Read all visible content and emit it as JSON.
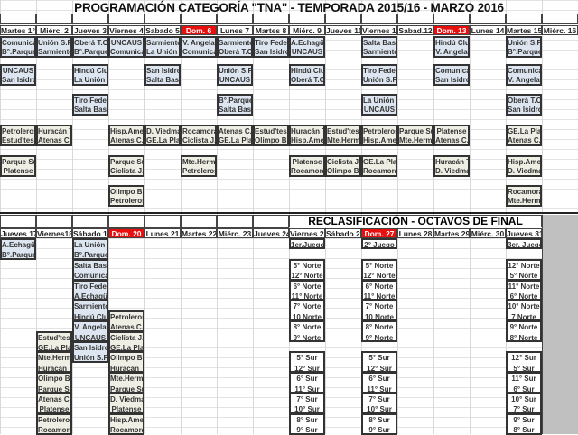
{
  "title": "PROGRAMACIÓN CATEGORÍA \"TNA\" - TEMPORADA 2015/16 - MARZO 2016",
  "colors": {
    "header_red": "#e8100f",
    "zone_a": "#dde6f0",
    "zone_b": "#eeeee4",
    "filler": "#c0c0c0"
  },
  "top": {
    "days": [
      {
        "label": "Martes 1°",
        "red": false,
        "games": [
          {
            "slot": 0,
            "kind": "blue",
            "teams": [
              "Comunicac",
              "B°.Parque"
            ]
          },
          {
            "slot": 1,
            "kind": "blue",
            "teams": [
              "UNCAUS",
              "San Isidro"
            ]
          },
          {
            "slot": 3,
            "kind": "beige",
            "teams": [
              "Petroleros",
              "Estud'tesO"
            ]
          },
          {
            "slot": 4,
            "kind": "beige",
            "teams": [
              "Parque Sur",
              "Platense"
            ]
          }
        ]
      },
      {
        "label": "Miérc. 2",
        "red": false,
        "games": [
          {
            "slot": 0,
            "kind": "blue",
            "teams": [
              "Unión S.Fe",
              "Sarmiento"
            ]
          },
          {
            "slot": 3,
            "kind": "beige",
            "teams": [
              "Huracán T.",
              "Atenas C.P"
            ]
          }
        ]
      },
      {
        "label": "Jueves 3",
        "red": false,
        "games": [
          {
            "slot": 0,
            "kind": "blue",
            "teams": [
              "Oberá T.C.",
              "B°.Parque"
            ]
          },
          {
            "slot": 1,
            "kind": "blue",
            "teams": [
              "Hindú Club",
              "La Unión C."
            ]
          },
          {
            "slot": 2,
            "kind": "blue",
            "teams": [
              "Tiro Feder.",
              "Salta Bask."
            ]
          }
        ]
      },
      {
        "label": "Viernes 4",
        "red": false,
        "games": [
          {
            "slot": 0,
            "kind": "blue",
            "teams": [
              "UNCAUS",
              "Comunicac"
            ]
          },
          {
            "slot": 3,
            "kind": "beige",
            "teams": [
              "Hisp.Amer.",
              "Atenas C.P"
            ]
          },
          {
            "slot": 4,
            "kind": "beige",
            "teams": [
              "Parque Sur",
              "Ciclista J."
            ]
          },
          {
            "slot": 5,
            "kind": "beige",
            "teams": [
              "Olimpo BB.",
              "Petroleros"
            ]
          }
        ]
      },
      {
        "label": "Sabado 5",
        "red": false,
        "games": [
          {
            "slot": 0,
            "kind": "blue",
            "teams": [
              "Sarmiento",
              "La Unión C."
            ]
          },
          {
            "slot": 1,
            "kind": "blue",
            "teams": [
              "San Isidro",
              "Salta Bask."
            ]
          },
          {
            "slot": 3,
            "kind": "beige",
            "teams": [
              "D. Viedma",
              "GE.La Plata"
            ]
          }
        ]
      },
      {
        "label": "Dom. 6",
        "red": true,
        "games": [
          {
            "slot": 0,
            "kind": "blue",
            "teams": [
              "V. Angela",
              "Comunicac"
            ]
          },
          {
            "slot": 3,
            "kind": "beige",
            "teams": [
              "Rocamora",
              "Ciclista J."
            ]
          },
          {
            "slot": 4,
            "kind": "beige",
            "teams": [
              "Mte.Herm.",
              "Petroleros"
            ]
          }
        ]
      },
      {
        "label": "Lunes 7",
        "red": false,
        "games": [
          {
            "slot": 0,
            "kind": "blue",
            "teams": [
              "Sarmiento",
              "Oberá T.C."
            ]
          },
          {
            "slot": 1,
            "kind": "blue",
            "teams": [
              "Unión S.Fe",
              "UNCAUS"
            ]
          },
          {
            "slot": 2,
            "kind": "blue",
            "teams": [
              "B°.Parque",
              "Salta Bask."
            ]
          },
          {
            "slot": 3,
            "kind": "beige",
            "teams": [
              "Atenas C.P",
              "GE.La Plata"
            ]
          }
        ]
      },
      {
        "label": "Martes 8",
        "red": false,
        "games": [
          {
            "slot": 0,
            "kind": "blue",
            "teams": [
              "Tiro Feder.",
              "San Isidro"
            ]
          },
          {
            "slot": 3,
            "kind": "beige",
            "teams": [
              "Estud'tesO",
              "Olimpo BB."
            ]
          }
        ]
      },
      {
        "label": "Miérc. 9",
        "red": false,
        "games": [
          {
            "slot": 0,
            "kind": "blue",
            "teams": [
              "A.Echagüe",
              "UNCAUS"
            ]
          },
          {
            "slot": 1,
            "kind": "blue",
            "teams": [
              "Hindú Club",
              "Oberá T.C."
            ]
          },
          {
            "slot": 3,
            "kind": "beige",
            "teams": [
              "Huracán T.",
              "Hisp.Amer."
            ]
          },
          {
            "slot": 4,
            "kind": "beige",
            "teams": [
              "Platense",
              "Rocamora"
            ]
          }
        ]
      },
      {
        "label": "Jueves 10",
        "red": false,
        "games": [
          {
            "slot": 3,
            "kind": "beige",
            "teams": [
              "Estud'tesO",
              "Mte.Herm."
            ]
          },
          {
            "slot": 4,
            "kind": "beige",
            "teams": [
              "Ciclista J.",
              "Olimpo BB."
            ]
          }
        ]
      },
      {
        "label": "Viernes 11",
        "red": false,
        "games": [
          {
            "slot": 0,
            "kind": "blue",
            "teams": [
              "Salta Bask.",
              "Sarmiento"
            ]
          },
          {
            "slot": 1,
            "kind": "blue",
            "teams": [
              "Tiro Feder.",
              "Unión S.Fe"
            ]
          },
          {
            "slot": 2,
            "kind": "blue",
            "teams": [
              "La Unión C.",
              "UNCAUS"
            ]
          },
          {
            "slot": 3,
            "kind": "beige",
            "teams": [
              "Petroleros",
              "Hisp.Amer."
            ]
          },
          {
            "slot": 4,
            "kind": "beige",
            "teams": [
              "GE.La Plata",
              "Rocamora"
            ]
          }
        ]
      },
      {
        "label": "Sabad.12",
        "red": false,
        "games": [
          {
            "slot": 3,
            "kind": "beige",
            "teams": [
              "Parque Sur",
              "Mte.Herm."
            ]
          }
        ]
      },
      {
        "label": "Dom. 13",
        "red": true,
        "games": [
          {
            "slot": 0,
            "kind": "blue",
            "teams": [
              "Hindú Club",
              "V. Angela"
            ]
          },
          {
            "slot": 1,
            "kind": "blue",
            "teams": [
              "Comunicac",
              "San Isidro"
            ]
          },
          {
            "slot": 3,
            "kind": "beige",
            "teams": [
              "Platense",
              "Atenas C.P"
            ]
          },
          {
            "slot": 4,
            "kind": "beige",
            "teams": [
              "Huracán T.",
              "D. Viedma"
            ]
          }
        ]
      },
      {
        "label": "Lunes 14",
        "red": false,
        "games": []
      },
      {
        "label": "Martes 15",
        "red": false,
        "games": [
          {
            "slot": 0,
            "kind": "blue",
            "teams": [
              "Unión S.Fe",
              "B°.Parque"
            ]
          },
          {
            "slot": 1,
            "kind": "blue",
            "teams": [
              "Comunicac",
              "V. Angela"
            ]
          },
          {
            "slot": 2,
            "kind": "blue",
            "teams": [
              "Oberá T.C.",
              "San Isidro"
            ]
          },
          {
            "slot": 3,
            "kind": "beige",
            "teams": [
              "GE.La Plata",
              "Atenas C.P"
            ]
          },
          {
            "slot": 4,
            "kind": "beige",
            "teams": [
              "Hisp.Amer.",
              "D. Viedma"
            ]
          },
          {
            "slot": 5,
            "kind": "beige",
            "teams": [
              "Rocamora",
              "Mte.Herm."
            ]
          }
        ]
      },
      {
        "label": "Miérc. 16",
        "red": false,
        "games": []
      }
    ]
  },
  "bottom": {
    "section_title": "RECLASIFICACIÓN - OCTAVOS DE FINAL",
    "days": [
      {
        "label": "Jueves 17",
        "red": false,
        "games": [
          {
            "row": 0,
            "kind": "blue",
            "teams": [
              "A.Echagüe",
              "B°.Parque"
            ]
          }
        ]
      },
      {
        "label": "Viernes18",
        "red": false,
        "games": [
          {
            "row": 9,
            "kind": "beige",
            "teams": [
              "Estud'tesO",
              "GE.La Plata"
            ]
          },
          {
            "row": 11,
            "kind": "beige",
            "teams": [
              "Mte.Herm.",
              "Huracán T."
            ]
          },
          {
            "row": 13,
            "kind": "beige",
            "teams": [
              "Olimpo BB.",
              "Parque Sur"
            ]
          },
          {
            "row": 15,
            "kind": "beige",
            "teams": [
              "Atenas C.P",
              "Platense"
            ]
          },
          {
            "row": 17,
            "kind": "beige",
            "teams": [
              "Petroleros",
              "Rocamora"
            ]
          }
        ]
      },
      {
        "label": "Sábado 19",
        "red": false,
        "games": [
          {
            "row": 0,
            "kind": "blue",
            "teams": [
              "La Unión C.",
              "B°.Parque"
            ]
          },
          {
            "row": 2,
            "kind": "blue",
            "teams": [
              "Salta Bask.",
              "Comunicac"
            ]
          },
          {
            "row": 4,
            "kind": "blue",
            "teams": [
              "Tiro Feder.",
              "A.Echagüe"
            ]
          },
          {
            "row": 6,
            "kind": "blue",
            "teams": [
              "Sarmiento",
              "Hindú Club"
            ]
          },
          {
            "row": 8,
            "kind": "blue",
            "teams": [
              "V. Angela",
              "UNCAUS"
            ]
          },
          {
            "row": 10,
            "kind": "blue",
            "teams": [
              "San Isidro",
              "Unión S.Fe"
            ]
          }
        ]
      },
      {
        "label": "Dom. 20",
        "red": true,
        "games": [
          {
            "row": 7,
            "kind": "beige",
            "teams": [
              "Petroleros",
              "Atenas C.P"
            ]
          },
          {
            "row": 9,
            "kind": "beige",
            "teams": [
              "Ciclista J.",
              "GE.La Plata"
            ]
          },
          {
            "row": 11,
            "kind": "beige",
            "teams": [
              "Olimpo BB.",
              "Huracán T."
            ]
          },
          {
            "row": 13,
            "kind": "beige",
            "teams": [
              "Mte.Herm.",
              "Parque Sur"
            ]
          },
          {
            "row": 15,
            "kind": "beige",
            "teams": [
              "D. Viedma",
              "Platense"
            ]
          },
          {
            "row": 17,
            "kind": "beige",
            "teams": [
              "Hisp.Amer.",
              "Rocamora"
            ]
          }
        ]
      },
      {
        "label": "Lunes 21",
        "red": false,
        "games": []
      },
      {
        "label": "Martes 22",
        "red": false,
        "games": []
      },
      {
        "label": "Miérc. 23",
        "red": false,
        "games": []
      },
      {
        "label": "Jueves 24",
        "red": false,
        "games": []
      },
      {
        "label": "Viernes 25",
        "red": false,
        "games": [
          {
            "row": 0,
            "kind": "white",
            "teams": [
              "1er.Juego"
            ]
          },
          {
            "row": 2,
            "kind": "white",
            "teams": [
              "5° Norte",
              "12° Norte"
            ]
          },
          {
            "row": 4,
            "kind": "white",
            "teams": [
              "6° Norte",
              "11° Norte"
            ]
          },
          {
            "row": 6,
            "kind": "white",
            "teams": [
              "7° Norte",
              "10 Norte"
            ]
          },
          {
            "row": 8,
            "kind": "white",
            "teams": [
              "8° Norte",
              "9° Norte"
            ]
          },
          {
            "row": 11,
            "kind": "white",
            "teams": [
              "5° Sur",
              "12° Sur"
            ]
          },
          {
            "row": 13,
            "kind": "white",
            "teams": [
              "6° Sur",
              "11° Sur"
            ]
          },
          {
            "row": 15,
            "kind": "white",
            "teams": [
              "7° Sur",
              "10° Sur"
            ]
          },
          {
            "row": 17,
            "kind": "white",
            "teams": [
              "8° Sur",
              "9° Sur"
            ]
          }
        ]
      },
      {
        "label": "Sábado 26",
        "red": false,
        "games": []
      },
      {
        "label": "Dom. 27",
        "red": true,
        "games": [
          {
            "row": 0,
            "kind": "white",
            "teams": [
              "2° Juego"
            ]
          },
          {
            "row": 2,
            "kind": "white",
            "teams": [
              "5° Norte",
              "12° Norte"
            ]
          },
          {
            "row": 4,
            "kind": "white",
            "teams": [
              "6° Norte",
              "11° Norte"
            ]
          },
          {
            "row": 6,
            "kind": "white",
            "teams": [
              "7° Norte",
              "10 Norte"
            ]
          },
          {
            "row": 8,
            "kind": "white",
            "teams": [
              "8° Norte",
              "9° Norte"
            ]
          },
          {
            "row": 11,
            "kind": "white",
            "teams": [
              "5° Sur",
              "12° Sur"
            ]
          },
          {
            "row": 13,
            "kind": "white",
            "teams": [
              "6° Sur",
              "11° Sur"
            ]
          },
          {
            "row": 15,
            "kind": "white",
            "teams": [
              "7° Sur",
              "10° Sur"
            ]
          },
          {
            "row": 17,
            "kind": "white",
            "teams": [
              "8° Sur",
              "9° Sur"
            ]
          }
        ]
      },
      {
        "label": "Lunes 28",
        "red": false,
        "games": []
      },
      {
        "label": "Martes 29",
        "red": false,
        "games": []
      },
      {
        "label": "Miérc. 30",
        "red": false,
        "games": []
      },
      {
        "label": "Jueves 31",
        "red": false,
        "games": [
          {
            "row": 0,
            "kind": "white",
            "teams": [
              "3er. Juego"
            ]
          },
          {
            "row": 2,
            "kind": "white",
            "teams": [
              "12° Norte",
              "5° Norte"
            ]
          },
          {
            "row": 4,
            "kind": "white",
            "teams": [
              "11° Norte",
              "6° Norte"
            ]
          },
          {
            "row": 6,
            "kind": "white",
            "teams": [
              "10° Norte",
              "7 Norte"
            ]
          },
          {
            "row": 8,
            "kind": "white",
            "teams": [
              "9° Norte",
              "8° Norte"
            ]
          },
          {
            "row": 11,
            "kind": "white",
            "teams": [
              "12° Sur",
              "5° Sur"
            ]
          },
          {
            "row": 13,
            "kind": "white",
            "teams": [
              "11° Sur",
              "6° Sur"
            ]
          },
          {
            "row": 15,
            "kind": "white",
            "teams": [
              "10° Sur",
              "7° Sur"
            ]
          },
          {
            "row": 17,
            "kind": "white",
            "teams": [
              "9° Sur",
              "8° Sur"
            ]
          }
        ]
      }
    ]
  }
}
